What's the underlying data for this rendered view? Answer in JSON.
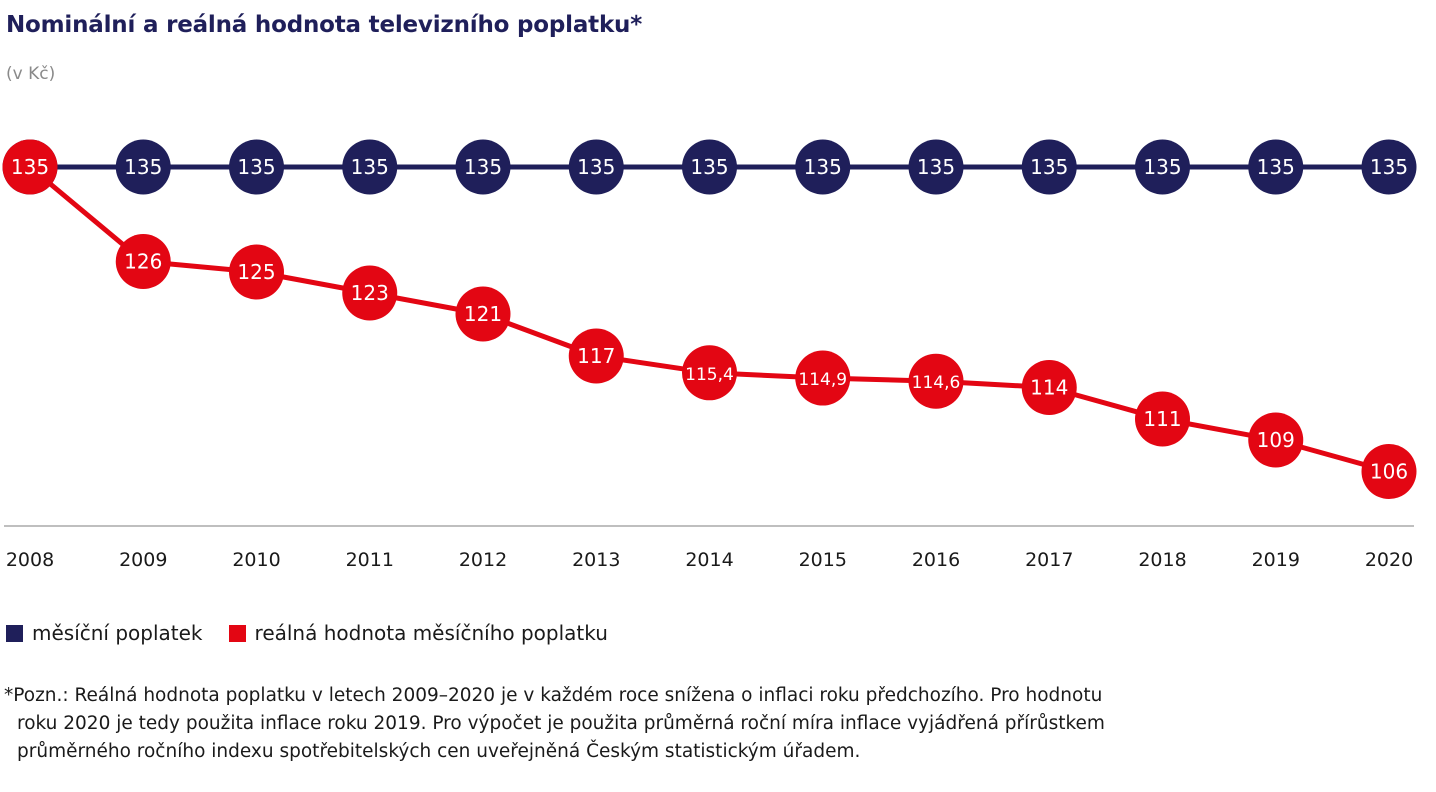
{
  "title": "Nominální a reálná hodnota televizního poplatku*",
  "subtitle": "(v Kč)",
  "colors": {
    "nominal": "#1f1f5a",
    "real": "#e30613",
    "axis": "#999999"
  },
  "legend": {
    "nominal_label": "měsíční poplatek",
    "real_label": "reálná hodnota měsíčního poplatku"
  },
  "footnote": {
    "line1": "*Pozn.: Reálná hodnota poplatku v letech 2009–2020 je v každém roce snížena o inflaci roku předchozího. Pro hodnotu",
    "line2": "roku 2020 je tedy použita inflace roku 2019. Pro výpočet je použita průměrná roční míra inflace vyjádřená přírůstkem",
    "line3": "průměrného ročního indexu spotřebitelských cen uveřejněná Českým statistickým úřadem."
  },
  "chart_data": {
    "type": "line",
    "title": "Nominální a reálná hodnota televizního poplatku*",
    "subtitle": "(v Kč)",
    "categories": [
      "2008",
      "2009",
      "2010",
      "2011",
      "2012",
      "2013",
      "2014",
      "2015",
      "2016",
      "2017",
      "2018",
      "2019",
      "2020"
    ],
    "series": [
      {
        "name": "měsíční poplatek",
        "values": [
          135,
          135,
          135,
          135,
          135,
          135,
          135,
          135,
          135,
          135,
          135,
          135,
          135
        ],
        "labels": [
          "135",
          "135",
          "135",
          "135",
          "135",
          "135",
          "135",
          "135",
          "135",
          "135",
          "135",
          "135",
          "135"
        ]
      },
      {
        "name": "reálná hodnota měsíčního poplatku",
        "values": [
          135,
          126,
          125,
          123,
          121,
          117,
          115.4,
          114.9,
          114.6,
          114,
          111,
          109,
          106
        ],
        "labels": [
          "135",
          "126",
          "125",
          "123",
          "121",
          "117",
          "115,4",
          "114,9",
          "114,6",
          "114",
          "111",
          "109",
          "106"
        ]
      }
    ],
    "ylim": [
      103,
      135
    ],
    "grid": false,
    "legend_position": "bottom-left",
    "xlabel": "",
    "ylabel": ""
  }
}
